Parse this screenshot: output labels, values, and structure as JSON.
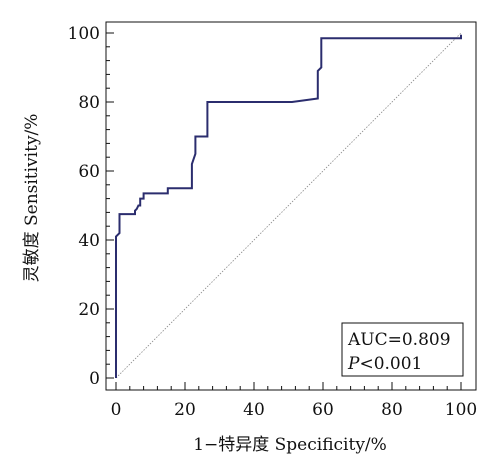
{
  "chart_data": {
    "type": "line",
    "xlabel": "1−特异度 Specificity/%",
    "ylabel": "灵敏度 Sensitivity/%",
    "xlim": [
      0,
      100
    ],
    "ylim": [
      0,
      100
    ],
    "x_ticks": [
      "0",
      "20",
      "40",
      "60",
      "80",
      "100"
    ],
    "y_ticks": [
      "0",
      "20",
      "40",
      "60",
      "80",
      "100"
    ],
    "grid": false,
    "series": [
      {
        "color": "#2b2d6e",
        "x": [
          0,
          0,
          1,
          1,
          1,
          5.5,
          5.5,
          6,
          6.5,
          7,
          7,
          8,
          8,
          15,
          15,
          22,
          22,
          23,
          23,
          26.5,
          26.5,
          51,
          58.5,
          58.5,
          59.5,
          59.5,
          100,
          100
        ],
        "y": [
          0,
          41,
          42,
          44,
          47.5,
          47.5,
          48.5,
          49,
          50,
          50,
          52,
          52,
          53.5,
          53.5,
          55,
          55,
          62,
          65,
          70,
          70,
          80,
          80,
          81,
          89,
          90,
          98.5,
          98.5,
          99.5
        ]
      }
    ],
    "reference_line": {
      "x": [
        0,
        100
      ],
      "y": [
        0,
        100
      ]
    },
    "annotations": {
      "auc": "AUC=0.809",
      "p_italic": "P",
      "p_rest": "<0.001"
    }
  }
}
